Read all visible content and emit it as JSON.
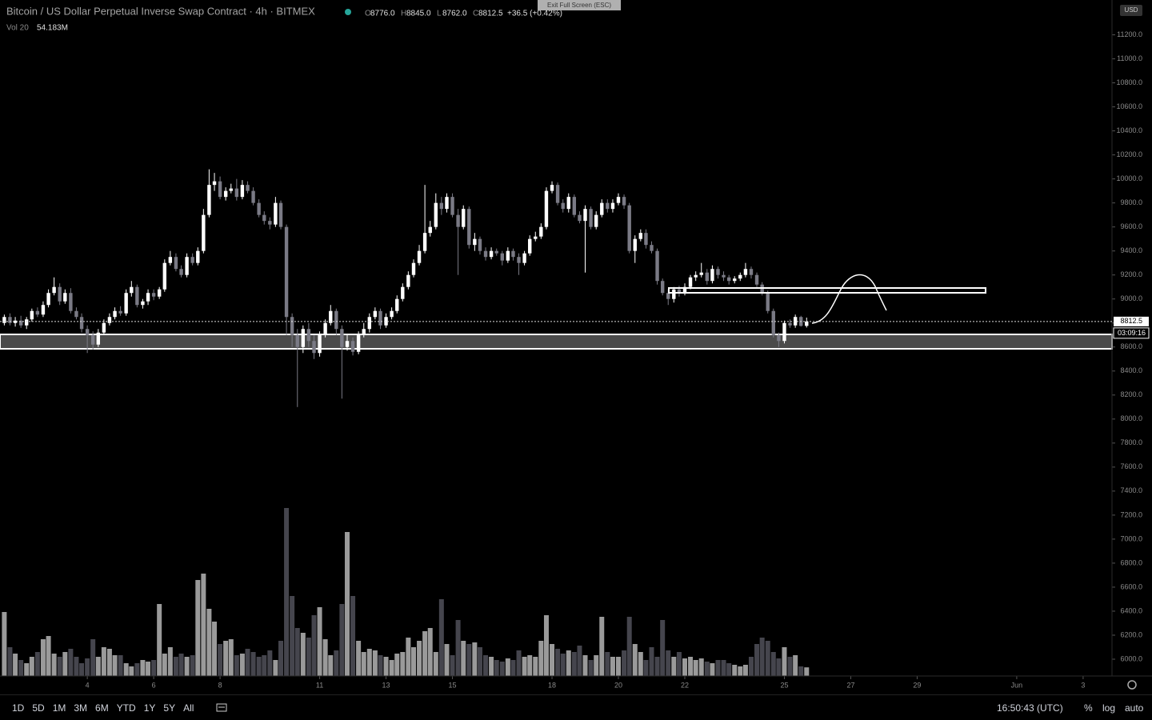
{
  "header": {
    "title": "Bitcoin / US Dollar Perpetual Inverse Swap Contract · 4h · BITMEX",
    "ohlc": [
      [
        "O",
        "8776.0"
      ],
      [
        "H",
        "8845.0"
      ],
      [
        "L",
        "8762.0"
      ],
      [
        "C",
        "8812.5"
      ]
    ],
    "change": "+36.5 (+0.42%)",
    "volume_name": "Vol 20",
    "volume_value": "54.183M",
    "exit": "Exit Full Screen (ESC)",
    "currency": "USD",
    "last_price": "8812.5",
    "countdown": "03:09:16"
  },
  "toolbar": {
    "timeframes": [
      "1D",
      "5D",
      "1M",
      "3M",
      "6M",
      "YTD",
      "1Y",
      "5Y",
      "All"
    ],
    "time": "16:50:43 (UTC)",
    "options": [
      "%",
      "log",
      "auto"
    ]
  },
  "chart_data": {
    "type": "candlestick",
    "xlim": [
      1.37,
      34.87
    ],
    "ylim": [
      5860,
      11490
    ],
    "xticks": [
      4,
      6,
      8,
      11,
      13,
      15,
      18,
      20,
      22,
      25,
      27,
      29,
      {
        "value": 32,
        "label": "Jun"
      },
      {
        "value": 34,
        "label": "3"
      }
    ],
    "yticks": [
      {
        "value": 6000,
        "label": "6000.0"
      },
      {
        "value": 6200,
        "label": "6200.0"
      },
      {
        "value": 6400,
        "label": "6400.0"
      },
      {
        "value": 6600,
        "label": "6600.0"
      },
      {
        "value": 6800,
        "label": "6800.0"
      },
      {
        "value": 7000,
        "label": "7000.0"
      },
      {
        "value": 7200,
        "label": "7200.0"
      },
      {
        "value": 7400,
        "label": "7400.0"
      },
      {
        "value": 7600,
        "label": "7600.0"
      },
      {
        "value": 7800,
        "label": "7800.0"
      },
      {
        "value": 8000,
        "label": "8000.0"
      },
      {
        "value": 8200,
        "label": "8200.0"
      },
      {
        "value": 8400,
        "label": "8400.0"
      },
      {
        "value": 8600,
        "label": "8600.0"
      },
      {
        "value": 8800,
        "label": "8800.0"
      },
      {
        "value": 9000,
        "label": "9000.0"
      },
      {
        "value": 9200,
        "label": "9200.0"
      },
      {
        "value": 9400,
        "label": "9400.0"
      },
      {
        "value": 9600,
        "label": "9600.0"
      },
      {
        "value": 9800,
        "label": "9800.0"
      },
      {
        "value": 10000,
        "label": "10000.0"
      },
      {
        "value": 10200,
        "label": "10200.0"
      },
      {
        "value": 10400,
        "label": "10400.0"
      },
      {
        "value": 10600,
        "label": "10600.0"
      },
      {
        "value": 10800,
        "label": "10800.0"
      },
      {
        "value": 11000,
        "label": "11000.0"
      },
      {
        "value": 11200,
        "label": "11200.0"
      }
    ],
    "up_color": "#ffffff",
    "down_color": "#7a7a85",
    "volume_up_color": "#9a9a9a",
    "volume_down_color": "#45454d",
    "x": [
      1.5,
      1.67,
      1.83,
      2,
      2.17,
      2.33,
      2.5,
      2.67,
      2.83,
      3,
      3.17,
      3.33,
      3.5,
      3.67,
      3.83,
      4,
      4.17,
      4.33,
      4.5,
      4.67,
      4.83,
      5,
      5.17,
      5.33,
      5.5,
      5.67,
      5.83,
      6,
      6.17,
      6.33,
      6.5,
      6.67,
      6.83,
      7,
      7.17,
      7.33,
      7.5,
      7.67,
      7.83,
      8,
      8.17,
      8.33,
      8.5,
      8.67,
      8.83,
      9,
      9.17,
      9.33,
      9.5,
      9.67,
      9.83,
      10,
      10.17,
      10.33,
      10.5,
      10.67,
      10.83,
      11,
      11.17,
      11.33,
      11.5,
      11.67,
      11.83,
      12,
      12.17,
      12.33,
      12.5,
      12.67,
      12.83,
      13,
      13.17,
      13.33,
      13.5,
      13.67,
      13.83,
      14,
      14.17,
      14.33,
      14.5,
      14.67,
      14.83,
      15,
      15.17,
      15.33,
      15.5,
      15.67,
      15.83,
      16,
      16.17,
      16.33,
      16.5,
      16.67,
      16.83,
      17,
      17.17,
      17.33,
      17.5,
      17.67,
      17.83,
      18,
      18.17,
      18.33,
      18.5,
      18.67,
      18.83,
      19,
      19.17,
      19.33,
      19.5,
      19.67,
      19.83,
      20,
      20.17,
      20.33,
      20.5,
      20.67,
      20.83,
      21,
      21.17,
      21.33,
      21.5,
      21.67,
      21.83,
      22,
      22.17,
      22.33,
      22.5,
      22.67,
      22.83,
      23,
      23.17,
      23.33,
      23.5,
      23.67,
      23.83,
      24,
      24.17,
      24.33,
      24.5,
      24.67,
      24.83,
      25,
      25.17,
      25.33,
      25.5,
      25.67
    ],
    "open": [
      8800,
      8850,
      8800,
      8820,
      8780,
      8830,
      8900,
      8870,
      8950,
      9050,
      9100,
      8980,
      9050,
      8900,
      8850,
      8750,
      8700,
      8620,
      8720,
      8800,
      8850,
      8900,
      8880,
      9050,
      9100,
      8950,
      8980,
      9050,
      9020,
      9080,
      9300,
      9350,
      9250,
      9200,
      9350,
      9300,
      9400,
      9700,
      9950,
      9980,
      9850,
      9900,
      9920,
      9850,
      9950,
      9900,
      9800,
      9700,
      9650,
      9620,
      9800,
      9600,
      8850,
      8700,
      8600,
      8750,
      8650,
      8550,
      8700,
      8800,
      8900,
      8750,
      8600,
      8650,
      8560,
      8700,
      8750,
      8850,
      8900,
      8780,
      8850,
      8900,
      9000,
      9100,
      9200,
      9300,
      9400,
      9550,
      9600,
      9800,
      9750,
      9850,
      9700,
      9600,
      9750,
      9450,
      9500,
      9400,
      9350,
      9400,
      9380,
      9320,
      9400,
      9350,
      9300,
      9380,
      9500,
      9520,
      9600,
      9900,
      9950,
      9800,
      9750,
      9850,
      9700,
      9650,
      9750,
      9600,
      9700,
      9800,
      9750,
      9800,
      9850,
      9780,
      9400,
      9500,
      9550,
      9450,
      9400,
      9150,
      9050,
      9000,
      9080,
      9050,
      9100,
      9180,
      9200,
      9220,
      9150,
      9250,
      9200,
      9180,
      9150,
      9170,
      9200,
      9250,
      9200,
      9120,
      9050,
      8900,
      8700,
      8650,
      8800,
      8780,
      8850,
      8776
    ],
    "high": [
      8870,
      8880,
      8850,
      8860,
      8850,
      8920,
      8930,
      8980,
      9080,
      9180,
      9130,
      9080,
      9090,
      8930,
      8880,
      8780,
      8730,
      8750,
      8830,
      8880,
      8930,
      8940,
      9080,
      9150,
      9120,
      9000,
      9080,
      9080,
      9100,
      9330,
      9400,
      9380,
      9280,
      9380,
      9380,
      9430,
      9750,
      10080,
      10050,
      10020,
      9930,
      9960,
      10000,
      9990,
      9980,
      9930,
      9830,
      9730,
      9680,
      9850,
      9820,
      9620,
      8880,
      8750,
      8780,
      8800,
      8700,
      8730,
      8830,
      8950,
      8920,
      8780,
      8700,
      8680,
      8730,
      8800,
      8880,
      8930,
      8920,
      8880,
      8930,
      9030,
      9130,
      9230,
      9330,
      9450,
      9950,
      9650,
      9880,
      9850,
      9880,
      9880,
      9750,
      9780,
      9770,
      9550,
      9520,
      9430,
      9430,
      9420,
      9400,
      9430,
      9420,
      9380,
      9400,
      9530,
      9560,
      9630,
      9930,
      9980,
      9970,
      9830,
      9880,
      9870,
      9730,
      9780,
      9770,
      9730,
      9830,
      9830,
      9830,
      9880,
      9870,
      9800,
      9530,
      9580,
      9580,
      9480,
      9420,
      9170,
      9080,
      9100,
      9110,
      9130,
      9200,
      9230,
      9300,
      9250,
      9280,
      9270,
      9230,
      9200,
      9190,
      9220,
      9300,
      9270,
      9220,
      9140,
      9070,
      8920,
      8720,
      8820,
      8830,
      8870,
      8860,
      8845
    ],
    "low": [
      8780,
      8780,
      8770,
      8760,
      8750,
      8810,
      8850,
      8850,
      8930,
      9030,
      8950,
      8960,
      8880,
      8830,
      8720,
      8550,
      8580,
      8600,
      8700,
      8780,
      8830,
      8860,
      8860,
      9020,
      8930,
      8920,
      8950,
      8990,
      9000,
      9060,
      9280,
      9230,
      9180,
      9180,
      9280,
      9280,
      9380,
      9680,
      9900,
      9830,
      9820,
      9880,
      9820,
      9830,
      9880,
      9780,
      9680,
      9620,
      9580,
      9600,
      9580,
      8700,
      8600,
      8100,
      8550,
      8600,
      8500,
      8520,
      8680,
      8780,
      8700,
      8170,
      8570,
      8530,
      8540,
      8680,
      8720,
      8830,
      8750,
      8760,
      8830,
      8880,
      8980,
      9080,
      9180,
      9280,
      9380,
      9520,
      9580,
      9700,
      9720,
      9680,
      9200,
      9580,
      9420,
      9400,
      9370,
      9320,
      9330,
      9360,
      9280,
      9300,
      9320,
      9200,
      9280,
      9360,
      9480,
      9500,
      9580,
      9880,
      9780,
      9720,
      9720,
      9680,
      9630,
      9220,
      9580,
      9580,
      9680,
      9720,
      9720,
      9780,
      9750,
      9380,
      9300,
      9480,
      9420,
      9380,
      9120,
      9030,
      8950,
      8970,
      9020,
      9030,
      9080,
      9150,
      9180,
      9120,
      9130,
      9170,
      9150,
      9120,
      9130,
      9150,
      9180,
      9170,
      9100,
      9030,
      8880,
      8680,
      8600,
      8630,
      8760,
      8760,
      8770,
      8762
    ],
    "close": [
      8850,
      8800,
      8820,
      8780,
      8830,
      8900,
      8870,
      8950,
      9050,
      9100,
      8980,
      9050,
      8900,
      8850,
      8750,
      8700,
      8620,
      8720,
      8800,
      8850,
      8900,
      8880,
      9050,
      9100,
      8950,
      8980,
      9050,
      9020,
      9080,
      9300,
      9350,
      9250,
      9200,
      9350,
      9300,
      9400,
      9700,
      9950,
      9980,
      9850,
      9900,
      9920,
      9850,
      9950,
      9900,
      9800,
      9700,
      9650,
      9620,
      9800,
      9600,
      8850,
      8700,
      8600,
      8750,
      8650,
      8550,
      8700,
      8800,
      8900,
      8750,
      8600,
      8650,
      8560,
      8700,
      8750,
      8850,
      8900,
      8780,
      8850,
      8900,
      9000,
      9100,
      9200,
      9300,
      9400,
      9550,
      9600,
      9800,
      9750,
      9850,
      9700,
      9600,
      9750,
      9450,
      9500,
      9400,
      9350,
      9400,
      9380,
      9320,
      9400,
      9350,
      9300,
      9380,
      9500,
      9520,
      9600,
      9900,
      9950,
      9800,
      9750,
      9850,
      9700,
      9650,
      9750,
      9600,
      9700,
      9800,
      9750,
      9800,
      9850,
      9780,
      9400,
      9500,
      9550,
      9450,
      9400,
      9150,
      9050,
      9000,
      9080,
      9050,
      9100,
      9180,
      9200,
      9220,
      9150,
      9250,
      9200,
      9180,
      9150,
      9170,
      9200,
      9250,
      9200,
      9120,
      9050,
      8900,
      8700,
      8650,
      8800,
      8780,
      8850,
      8776,
      8812.5
    ],
    "volume": [
      400,
      180,
      140,
      100,
      80,
      120,
      150,
      230,
      250,
      140,
      120,
      150,
      170,
      120,
      80,
      110,
      230,
      120,
      180,
      170,
      130,
      130,
      80,
      60,
      80,
      100,
      90,
      100,
      450,
      140,
      180,
      120,
      140,
      120,
      130,
      600,
      640,
      420,
      340,
      200,
      220,
      230,
      130,
      140,
      170,
      150,
      120,
      130,
      160,
      100,
      220,
      1050,
      500,
      300,
      270,
      240,
      380,
      430,
      230,
      130,
      160,
      450,
      900,
      500,
      220,
      150,
      170,
      160,
      130,
      120,
      100,
      140,
      150,
      240,
      180,
      220,
      280,
      300,
      150,
      480,
      200,
      130,
      350,
      220,
      200,
      210,
      180,
      130,
      120,
      100,
      90,
      110,
      100,
      160,
      120,
      130,
      120,
      220,
      380,
      200,
      170,
      140,
      160,
      150,
      190,
      130,
      100,
      130,
      370,
      150,
      120,
      120,
      160,
      370,
      200,
      150,
      100,
      180,
      120,
      350,
      160,
      120,
      150,
      110,
      120,
      100,
      110,
      90,
      80,
      100,
      100,
      80,
      70,
      60,
      70,
      120,
      200,
      240,
      220,
      150,
      110,
      180,
      120,
      130,
      60,
      54
    ]
  }
}
